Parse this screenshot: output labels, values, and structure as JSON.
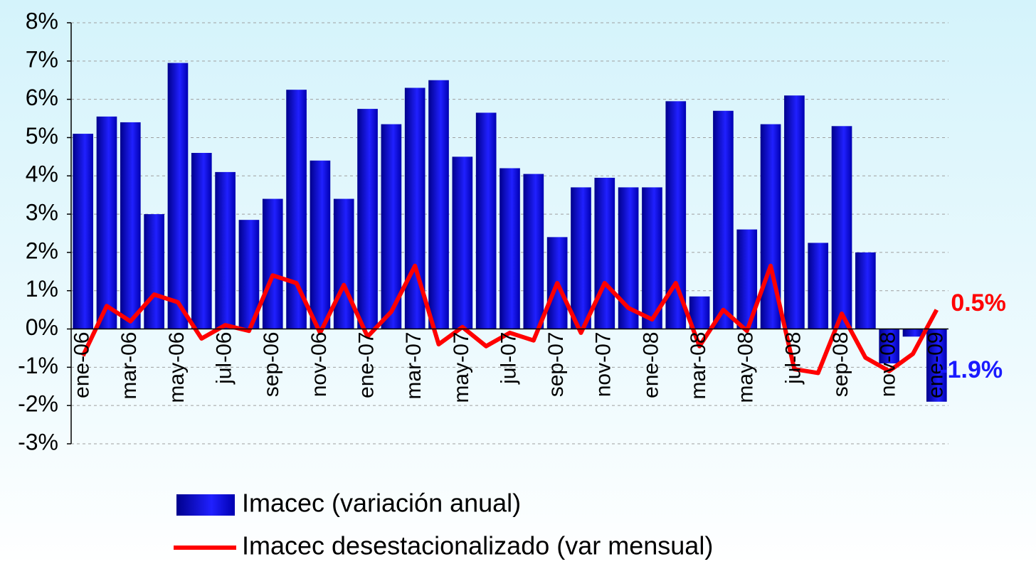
{
  "chart_data": {
    "type": "bar-line",
    "categories": [
      "ene-06",
      null,
      "mar-06",
      null,
      "may-06",
      null,
      "jul-06",
      null,
      "sep-06",
      null,
      "nov-06",
      null,
      "ene-07",
      null,
      "mar-07",
      null,
      "may-07",
      null,
      "jul-07",
      null,
      "sep-07",
      null,
      "nov-07",
      null,
      "ene-08",
      null,
      "mar-08",
      null,
      "may-08",
      null,
      "jul-08",
      null,
      "sep-08",
      null,
      "nov-08",
      null,
      "ene-09"
    ],
    "series": [
      {
        "name": "Imacec (variación anual)",
        "type": "bar",
        "color": "#1010f0",
        "values": [
          5.1,
          5.55,
          5.4,
          3.0,
          6.95,
          4.6,
          4.1,
          2.85,
          3.4,
          6.25,
          4.4,
          3.4,
          5.75,
          5.35,
          6.3,
          6.5,
          4.5,
          5.65,
          4.2,
          4.05,
          2.4,
          3.7,
          3.95,
          3.7,
          3.7,
          5.95,
          0.85,
          5.7,
          2.6,
          5.35,
          6.1,
          2.25,
          5.3,
          2.0,
          -0.9,
          -0.2,
          -1.9
        ],
        "value_labels": [
          null,
          null,
          null,
          null,
          null,
          null,
          null,
          null,
          null,
          null,
          null,
          null,
          null,
          null,
          null,
          null,
          null,
          null,
          null,
          null,
          null,
          null,
          null,
          null,
          null,
          null,
          null,
          null,
          null,
          null,
          null,
          null,
          null,
          null,
          null,
          null,
          "-1.9%"
        ]
      },
      {
        "name": "Imacec desestacionalizado (var mensual)",
        "type": "line",
        "color": "#ff0000",
        "values": [
          -0.7,
          0.6,
          0.2,
          0.9,
          0.7,
          -0.25,
          0.1,
          -0.05,
          1.4,
          1.2,
          -0.1,
          1.15,
          -0.2,
          0.45,
          1.65,
          -0.4,
          0.05,
          -0.45,
          -0.1,
          -0.3,
          1.2,
          -0.1,
          1.2,
          0.55,
          0.25,
          1.2,
          -0.45,
          0.5,
          -0.05,
          1.65,
          -1.05,
          -1.15,
          0.4,
          -0.75,
          -1.1,
          -0.65,
          0.5
        ],
        "value_labels": [
          null,
          null,
          null,
          null,
          null,
          null,
          null,
          null,
          null,
          null,
          null,
          null,
          null,
          null,
          null,
          null,
          null,
          null,
          null,
          null,
          null,
          null,
          null,
          null,
          null,
          null,
          null,
          null,
          null,
          null,
          null,
          null,
          null,
          null,
          null,
          null,
          "0.5%"
        ]
      }
    ],
    "ylim": [
      -3,
      8
    ],
    "yticks": [
      {
        "value": -3,
        "label": "-3%"
      },
      {
        "value": -2,
        "label": "-2%"
      },
      {
        "value": -1,
        "label": "-1%"
      },
      {
        "value": 0,
        "label": "0%"
      },
      {
        "value": 1,
        "label": "1%"
      },
      {
        "value": 2,
        "label": "2%"
      },
      {
        "value": 3,
        "label": "3%"
      },
      {
        "value": 4,
        "label": "4%"
      },
      {
        "value": 5,
        "label": "5%"
      },
      {
        "value": 6,
        "label": "6%"
      },
      {
        "value": 7,
        "label": "7%"
      },
      {
        "value": 8,
        "label": "8%"
      }
    ],
    "grid": true,
    "legend": "bottom"
  }
}
